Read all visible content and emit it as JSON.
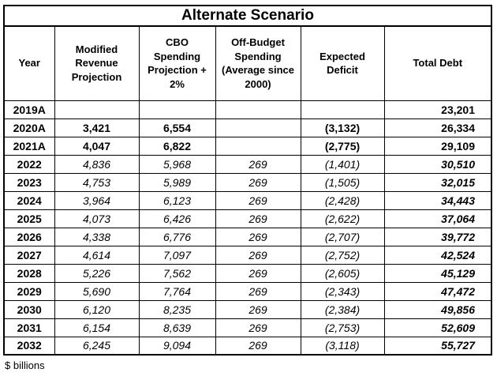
{
  "chart_data": {
    "type": "table",
    "title": "Alternate Scenario",
    "units_note": "$ billions",
    "columns": [
      "Year",
      "Modified Revenue Projection",
      "CBO Spending Projection + 2%",
      "Off-Budget Spending (Average since 2000)",
      "Expected Deficit",
      "Total Debt"
    ],
    "column_ids": [
      "year",
      "modified-revenue",
      "cbo-spending",
      "off-budget-spending",
      "expected-deficit",
      "total-debt"
    ],
    "rows": [
      {
        "year": "2019A",
        "type": "actual",
        "values": [
          "",
          "",
          "",
          "",
          "23,201"
        ]
      },
      {
        "year": "2020A",
        "type": "actual",
        "values": [
          "3,421",
          "6,554",
          "",
          "(3,132)",
          "26,334"
        ]
      },
      {
        "year": "2021A",
        "type": "actual",
        "values": [
          "4,047",
          "6,822",
          "",
          "(2,775)",
          "29,109"
        ]
      },
      {
        "year": "2022",
        "type": "projected",
        "values": [
          "4,836",
          "5,968",
          "269",
          "(1,401)",
          "30,510"
        ]
      },
      {
        "year": "2023",
        "type": "projected",
        "values": [
          "4,753",
          "5,989",
          "269",
          "(1,505)",
          "32,015"
        ]
      },
      {
        "year": "2024",
        "type": "projected",
        "values": [
          "3,964",
          "6,123",
          "269",
          "(2,428)",
          "34,443"
        ]
      },
      {
        "year": "2025",
        "type": "projected",
        "values": [
          "4,073",
          "6,426",
          "269",
          "(2,622)",
          "37,064"
        ]
      },
      {
        "year": "2026",
        "type": "projected",
        "values": [
          "4,338",
          "6,776",
          "269",
          "(2,707)",
          "39,772"
        ]
      },
      {
        "year": "2027",
        "type": "projected",
        "values": [
          "4,614",
          "7,097",
          "269",
          "(2,752)",
          "42,524"
        ]
      },
      {
        "year": "2028",
        "type": "projected",
        "values": [
          "5,226",
          "7,562",
          "269",
          "(2,605)",
          "45,129"
        ]
      },
      {
        "year": "2029",
        "type": "projected",
        "values": [
          "5,690",
          "7,764",
          "269",
          "(2,343)",
          "47,472"
        ]
      },
      {
        "year": "2030",
        "type": "projected",
        "values": [
          "6,120",
          "8,235",
          "269",
          "(2,384)",
          "49,856"
        ]
      },
      {
        "year": "2031",
        "type": "projected",
        "values": [
          "6,154",
          "8,639",
          "269",
          "(2,753)",
          "52,609"
        ]
      },
      {
        "year": "2032",
        "type": "projected",
        "values": [
          "6,245",
          "9,094",
          "269",
          "(3,118)",
          "55,727"
        ]
      }
    ]
  }
}
